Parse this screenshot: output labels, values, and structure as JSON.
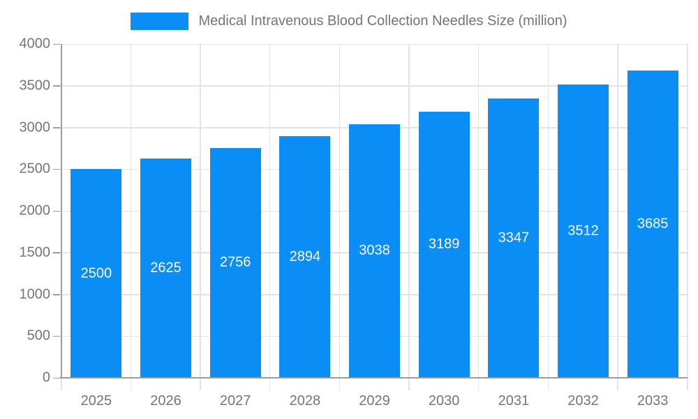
{
  "legend": {
    "label": "Medical Intravenous Blood Collection Needles Size (million)"
  },
  "chart_data": {
    "type": "bar",
    "title": "Medical Intravenous Blood Collection Needles Size (million)",
    "categories": [
      "2025",
      "2026",
      "2027",
      "2028",
      "2029",
      "2030",
      "2031",
      "2032",
      "2033"
    ],
    "values": [
      2500,
      2625,
      2756,
      2894,
      3038,
      3189,
      3347,
      3512,
      3685
    ],
    "xlabel": "",
    "ylabel": "",
    "ylim": [
      0,
      4000
    ],
    "yticks": [
      0,
      500,
      1000,
      1500,
      2000,
      2500,
      3000,
      3500,
      4000
    ],
    "grid": true,
    "legend_position": "top",
    "value_labels": "centered-inside-bars",
    "colors": {
      "bar": "#0a8ef5",
      "bar_label": "#ffffff",
      "axis": "#9b9b9b",
      "grid": "#e3e3e3",
      "tick_label": "#757575",
      "legend_label": "#757575"
    }
  }
}
